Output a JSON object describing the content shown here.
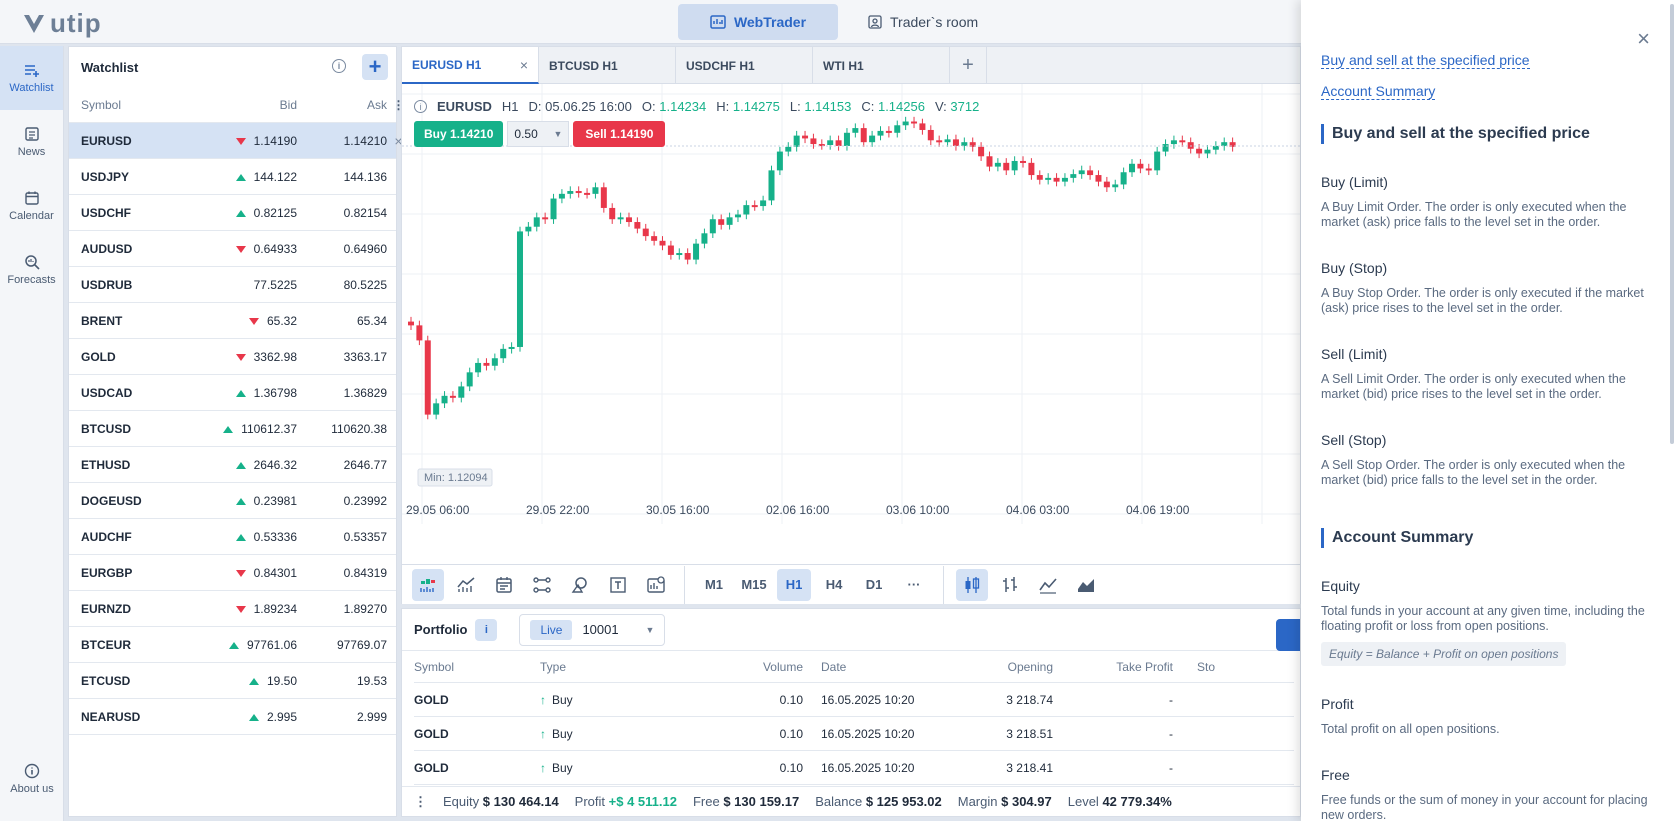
{
  "app": {
    "logo": "utip"
  },
  "topnav": {
    "webtrader": "WebTrader",
    "traders_room": "Trader`s room"
  },
  "leftnav": [
    {
      "label": "Watchlist",
      "icon": "watchlist-icon"
    },
    {
      "label": "News",
      "icon": "news-icon"
    },
    {
      "label": "Calendar",
      "icon": "calendar-icon"
    },
    {
      "label": "Forecasts",
      "icon": "forecasts-icon"
    }
  ],
  "about": "About us",
  "watchlist": {
    "title": "Watchlist",
    "cols": {
      "symbol": "Symbol",
      "bid": "Bid",
      "ask": "Ask"
    },
    "rows": [
      {
        "symbol": "EURUSD",
        "dir": "down",
        "bid": "1.14190",
        "ask": "1.14210"
      },
      {
        "symbol": "USDJPY",
        "dir": "up",
        "bid": "144.122",
        "ask": "144.136"
      },
      {
        "symbol": "USDCHF",
        "dir": "up",
        "bid": "0.82125",
        "ask": "0.82154"
      },
      {
        "symbol": "AUDUSD",
        "dir": "down",
        "bid": "0.64933",
        "ask": "0.64960"
      },
      {
        "symbol": "USDRUB",
        "dir": "",
        "bid": "77.5225",
        "ask": "80.5225"
      },
      {
        "symbol": "BRENT",
        "dir": "down",
        "bid": "65.32",
        "ask": "65.34"
      },
      {
        "symbol": "GOLD",
        "dir": "down",
        "bid": "3362.98",
        "ask": "3363.17"
      },
      {
        "symbol": "USDCAD",
        "dir": "up",
        "bid": "1.36798",
        "ask": "1.36829"
      },
      {
        "symbol": "BTCUSD",
        "dir": "up",
        "bid": "110612.37",
        "ask": "110620.38"
      },
      {
        "symbol": "ETHUSD",
        "dir": "up",
        "bid": "2646.32",
        "ask": "2646.77"
      },
      {
        "symbol": "DOGEUSD",
        "dir": "up",
        "bid": "0.23981",
        "ask": "0.23992"
      },
      {
        "symbol": "AUDCHF",
        "dir": "up",
        "bid": "0.53336",
        "ask": "0.53357"
      },
      {
        "symbol": "EURGBP",
        "dir": "down",
        "bid": "0.84301",
        "ask": "0.84319"
      },
      {
        "symbol": "EURNZD",
        "dir": "down",
        "bid": "1.89234",
        "ask": "1.89270"
      },
      {
        "symbol": "BTCEUR",
        "dir": "up",
        "bid": "97761.06",
        "ask": "97769.07"
      },
      {
        "symbol": "ETCUSD",
        "dir": "up",
        "bid": "19.50",
        "ask": "19.53"
      },
      {
        "symbol": "NEARUSD",
        "dir": "up",
        "bid": "2.995",
        "ask": "2.999"
      }
    ]
  },
  "tabs": [
    "EURUSD H1",
    "BTCUSD H1",
    "USDCHF H1",
    "WTI H1"
  ],
  "chart": {
    "symbol": "EURUSD",
    "tf": "H1",
    "date": "D: 05.06.25 16:00",
    "o_label": "O:",
    "o": "1.14234",
    "h_label": "H:",
    "h": "1.14275",
    "l_label": "L:",
    "l": "1.14153",
    "c_label": "C:",
    "c": "1.14256",
    "v_label": "V:",
    "v": "3712",
    "buy": "Buy 1.14210",
    "qty": "0.50",
    "sell": "Sell 1.14190",
    "min_label": "Min: 1.12094",
    "x_labels": [
      "29.05 06:00",
      "29.05 22:00",
      "30.05 16:00",
      "02.06 16:00",
      "03.06 10:00",
      "04.06 03:00",
      "04.06 19:00"
    ],
    "colors": {
      "up": "#16b18a",
      "down": "#e8374a"
    }
  },
  "chart_data": {
    "type": "candlestick",
    "series": [
      {
        "values": [
          1.1305,
          1.1289,
          1.121,
          1.1222,
          1.123,
          1.1228,
          1.124,
          1.1255,
          1.1265,
          1.1262,
          1.127,
          1.128,
          1.1282,
          1.1405,
          1.141,
          1.142,
          1.1418,
          1.144,
          1.1445,
          1.1448,
          1.1446,
          1.1445,
          1.1452,
          1.143,
          1.1418,
          1.142,
          1.1415,
          1.1408,
          1.14,
          1.1395,
          1.139,
          1.138,
          1.1382,
          1.1375,
          1.1392,
          1.1403,
          1.1418,
          1.1412,
          1.142,
          1.1423,
          1.1433,
          1.1432,
          1.1438,
          1.147,
          1.149,
          1.1495,
          1.1507,
          1.1504,
          1.1498,
          1.1497,
          1.1502,
          1.1496,
          1.151,
          1.1515,
          1.15,
          1.1507,
          1.1512,
          1.151,
          1.1518,
          1.1522,
          1.152,
          1.1513,
          1.1502,
          1.15,
          1.1503,
          1.1496,
          1.15,
          1.1495,
          1.1485,
          1.1474,
          1.1478,
          1.147,
          1.148,
          1.1478,
          1.1465,
          1.146,
          1.1462,
          1.1458,
          1.1462,
          1.1466,
          1.147,
          1.1465,
          1.1458,
          1.1452,
          1.1455,
          1.1468,
          1.1477,
          1.1472,
          1.147,
          1.149,
          1.1498,
          1.1502,
          1.15,
          1.1493,
          1.1488,
          1.1492,
          1.1496,
          1.15,
          1.1495
        ]
      }
    ]
  },
  "tools": {
    "timeframes": [
      "M1",
      "M15",
      "H1",
      "H4",
      "D1",
      "···"
    ]
  },
  "portfolio": {
    "title": "Portfolio",
    "live": "Live",
    "account": "10001",
    "cols": [
      "Symbol",
      "Type",
      "Volume",
      "Date",
      "Opening",
      "Take Profit",
      "Sto"
    ],
    "rows": [
      {
        "symbol": "GOLD",
        "type": "Buy",
        "volume": "0.10",
        "date": "16.05.2025 10:20",
        "opening": "3 218.74",
        "tp": "-"
      },
      {
        "symbol": "GOLD",
        "type": "Buy",
        "volume": "0.10",
        "date": "16.05.2025 10:20",
        "opening": "3 218.51",
        "tp": "-"
      },
      {
        "symbol": "GOLD",
        "type": "Buy",
        "volume": "0.10",
        "date": "16.05.2025 10:20",
        "opening": "3 218.41",
        "tp": "-"
      }
    ],
    "status": {
      "equity_label": "Equity",
      "equity": "$ 130 464.14",
      "profit_label": "Profit",
      "profit": "+$ 4 511.12",
      "free_label": "Free",
      "free": "$ 130 159.17",
      "balance_label": "Balance",
      "balance": "$ 125 953.02",
      "margin_label": "Margin",
      "margin": "$ 304.97",
      "level_label": "Level",
      "level": "42 779.34%"
    }
  },
  "panel": {
    "links": [
      "Buy and sell at the specified price",
      "Account Summary"
    ],
    "section1": "Buy and sell at the specified price",
    "items1": [
      {
        "t": "Buy (Limit)",
        "d": "A Buy Limit Order. The order is only executed when the market (ask) price falls to the level set in the order."
      },
      {
        "t": "Buy (Stop)",
        "d": "A Buy Stop Order. The order is only executed if the market (ask) price rises to the level set in the order."
      },
      {
        "t": "Sell (Limit)",
        "d": "A Sell Limit Order. The order is only executed when the market (bid) price rises to the level set in the order."
      },
      {
        "t": "Sell (Stop)",
        "d": "A Sell Stop Order. The order is only executed when the market (bid) price falls to the level set in the order."
      }
    ],
    "section2": "Account Summary",
    "items2": [
      {
        "t": "Equity",
        "d": "Total funds in your account at any given time, including the floating profit or loss from open positions.",
        "f": "Equity = Balance + Profit on open positions"
      },
      {
        "t": "Profit",
        "d": "Total profit on all open positions."
      },
      {
        "t": "Free",
        "d": "Free funds or the sum of money in your account for placing new orders."
      }
    ]
  }
}
